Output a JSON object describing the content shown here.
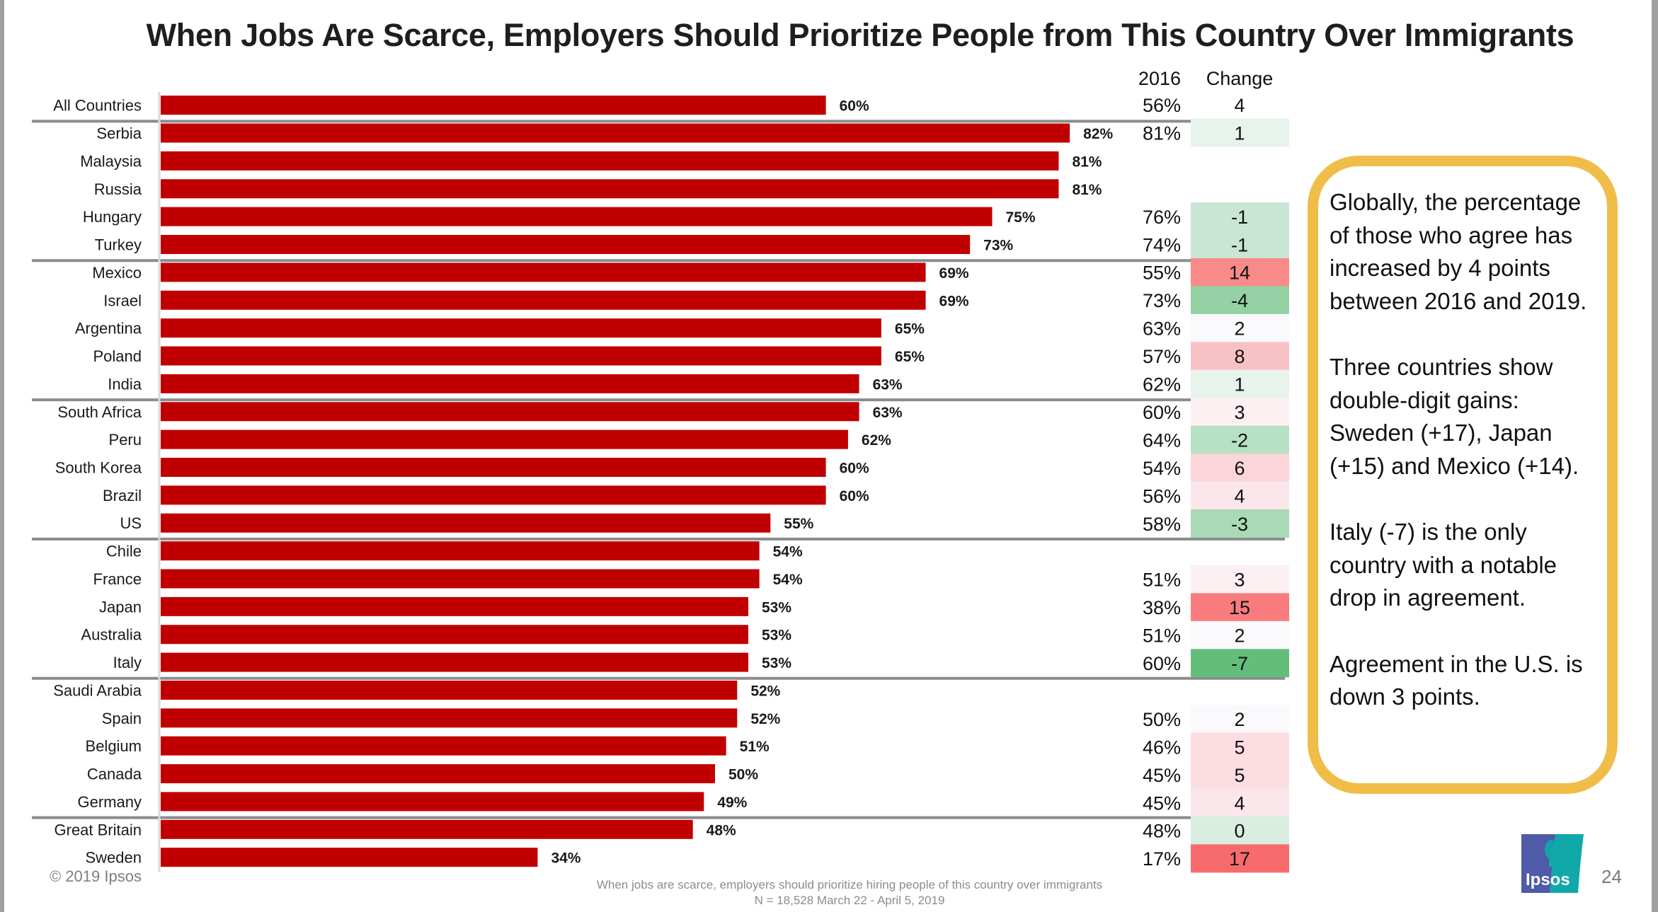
{
  "slide": {
    "title": "When Jobs Are Scarce, Employers Should Prioritize People from This Country Over Immigrants",
    "copyright": "© 2019 Ipsos",
    "footnote_line1": "When jobs are scarce, employers should prioritize hiring people of this country over immigrants",
    "footnote_line2": "N = 18,528  March 22 - April 5, 2019",
    "page_number": "24",
    "logo_text": "Ipsos",
    "colors": {
      "bar": "#c00000",
      "separator": "#8a8c8e",
      "callout_border": "#f0bd48",
      "logo_blue": "#4f5aa8",
      "logo_teal": "#10a8a8"
    }
  },
  "callout": {
    "paragraphs": [
      "Globally, the percentage of those who agree has increased by 4 points between 2016 and 2019.",
      "Three countries show double-digit gains: Sweden (+17), Japan (+15) and Mexico (+14).",
      "Italy (-7) is the only country with a notable drop in agreement.",
      "Agreement in the U.S. is down 3 points."
    ]
  },
  "chart_data": {
    "type": "bar",
    "orientation": "horizontal",
    "title": "When Jobs Are Scarce, Employers Should Prioritize People from This Country Over Immigrants",
    "xlabel": "",
    "ylabel": "",
    "xlim": [
      0,
      100
    ],
    "unit": "%",
    "grid": false,
    "categories": [
      "All Countries",
      "Serbia",
      "Malaysia",
      "Russia",
      "Hungary",
      "Turkey",
      "Mexico",
      "Israel",
      "Argentina",
      "Poland",
      "India",
      "South Africa",
      "Peru",
      "South Korea",
      "Brazil",
      "US",
      "Chile",
      "France",
      "Japan",
      "Australia",
      "Italy",
      "Saudi Arabia",
      "Spain",
      "Belgium",
      "Canada",
      "Germany",
      "Great Britain",
      "Sweden"
    ],
    "values": [
      60,
      82,
      81,
      81,
      75,
      73,
      69,
      69,
      65,
      65,
      63,
      63,
      62,
      60,
      60,
      55,
      54,
      54,
      53,
      53,
      53,
      52,
      52,
      51,
      50,
      49,
      48,
      34
    ],
    "separators_after": [
      "All Countries",
      "Turkey",
      "India",
      "US",
      "Italy",
      "Germany"
    ],
    "table": {
      "headers": [
        "2016",
        "Change"
      ],
      "values_2016": [
        56,
        81,
        null,
        null,
        76,
        74,
        55,
        73,
        63,
        57,
        62,
        60,
        64,
        54,
        56,
        58,
        null,
        51,
        38,
        51,
        60,
        null,
        50,
        46,
        45,
        45,
        48,
        17
      ],
      "change": [
        4,
        1,
        null,
        null,
        -1,
        -1,
        14,
        -4,
        2,
        8,
        1,
        3,
        -2,
        6,
        4,
        -3,
        null,
        3,
        15,
        2,
        -7,
        null,
        2,
        5,
        5,
        4,
        0,
        17
      ],
      "change_colors": [
        null,
        "#e8f3ec",
        null,
        null,
        "#c8e6d3",
        "#c8e6d3",
        "#f88a8a",
        "#94d1a4",
        "#fafafd",
        "#f8c2c4",
        "#e8f3ec",
        "#fcf0f3",
        "#b8e0c4",
        "#fad5da",
        "#fbe7eb",
        "#a9dab5",
        null,
        "#fcf0f3",
        "#f87c7e",
        "#fafafd",
        "#63be7b",
        null,
        "#fafafd",
        "#fbdde2",
        "#fbdde2",
        "#fbe7eb",
        "#d9ede0",
        "#f86b6d"
      ]
    }
  }
}
